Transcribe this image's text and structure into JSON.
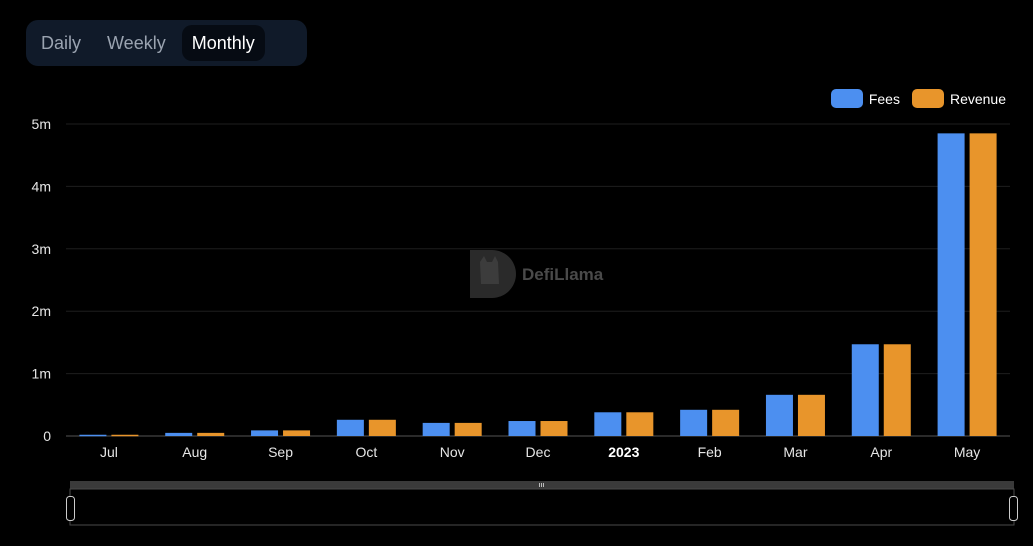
{
  "tabs": [
    {
      "label": "Daily",
      "active": false
    },
    {
      "label": "Weekly",
      "active": false
    },
    {
      "label": "Monthly",
      "active": true
    }
  ],
  "watermark": {
    "text": "DefiLlama",
    "icon": "llama-logo-icon"
  },
  "colors": {
    "fees": "#4c8ff0",
    "revenue": "#e8952b",
    "grid": "#1e1e1e",
    "axis": "#555555"
  },
  "chart_data": {
    "type": "bar",
    "categories": [
      "Jul",
      "Aug",
      "Sep",
      "Oct",
      "Nov",
      "Dec",
      "2023",
      "Feb",
      "Mar",
      "Apr",
      "May"
    ],
    "bold_categories": [
      "2023"
    ],
    "series": [
      {
        "name": "Fees",
        "values": [
          0.02,
          0.05,
          0.09,
          0.26,
          0.21,
          0.24,
          0.38,
          0.42,
          0.66,
          1.47,
          4.85
        ]
      },
      {
        "name": "Revenue",
        "values": [
          0.02,
          0.05,
          0.09,
          0.26,
          0.21,
          0.24,
          0.38,
          0.42,
          0.66,
          1.47,
          4.85
        ]
      }
    ],
    "value_unit": "millions",
    "y_ticks": [
      "0",
      "1m",
      "2m",
      "3m",
      "4m",
      "5m"
    ],
    "ylim": [
      0,
      5
    ],
    "grid": true,
    "legend_position": "top-right",
    "data_zoom_slider": true
  }
}
